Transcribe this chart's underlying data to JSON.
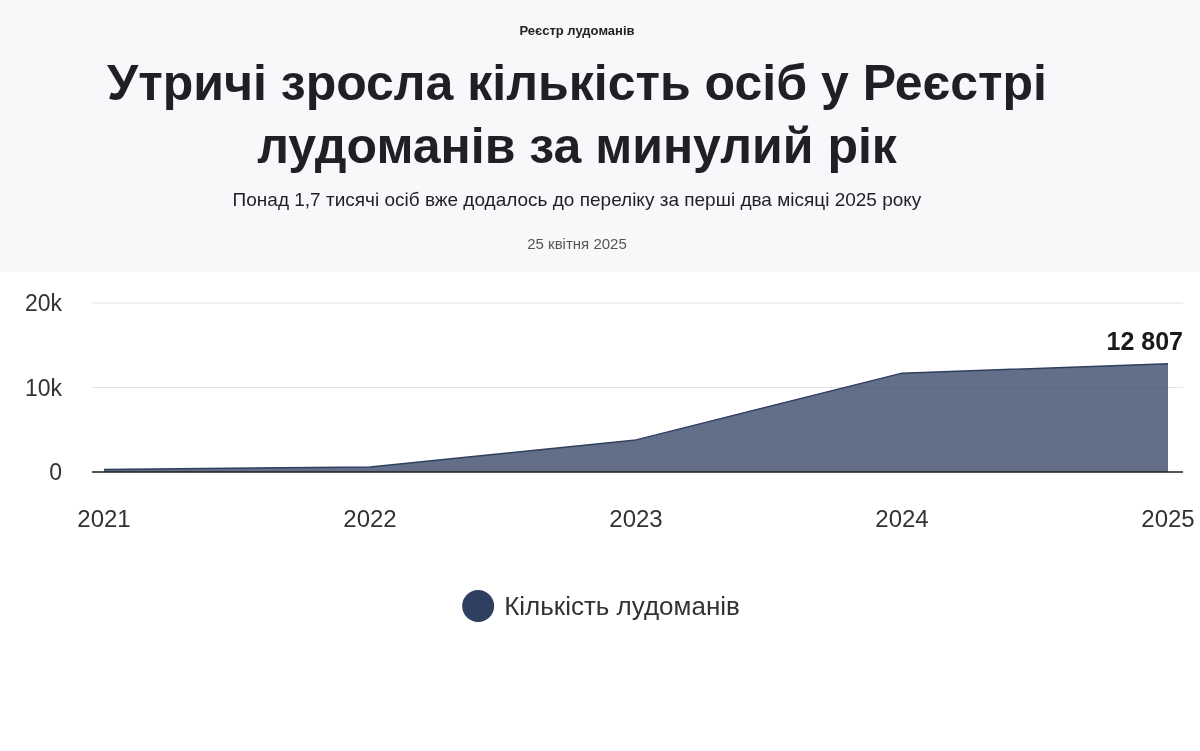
{
  "chart_data": {
    "type": "area",
    "title": "Утричі зросла кількість осіб у Реєстрі лудоманів за минулий рік",
    "subtitle": "Понад 1,7 тисячі осіб вже додалось до переліку за перші два місяці 2025 року",
    "annotations": [
      "Реєстр лудоманів",
      "25 квітня 2025"
    ],
    "categories": [
      "2021",
      "2022",
      "2023",
      "2024",
      "2025"
    ],
    "series": [
      {
        "name": "Кількість лудоманів",
        "color": "#2f3f60",
        "values": [
          300,
          600,
          3800,
          11700,
          12807
        ],
        "value_labels": [
          null,
          null,
          null,
          null,
          "12 807"
        ]
      }
    ],
    "ylim": [
      0,
      20000
    ],
    "yticks": [
      0,
      {
        "value": 10000,
        "label": "10k"
      },
      {
        "value": 20000,
        "label": "20k"
      }
    ],
    "grid": "y",
    "legend": "bottom"
  }
}
